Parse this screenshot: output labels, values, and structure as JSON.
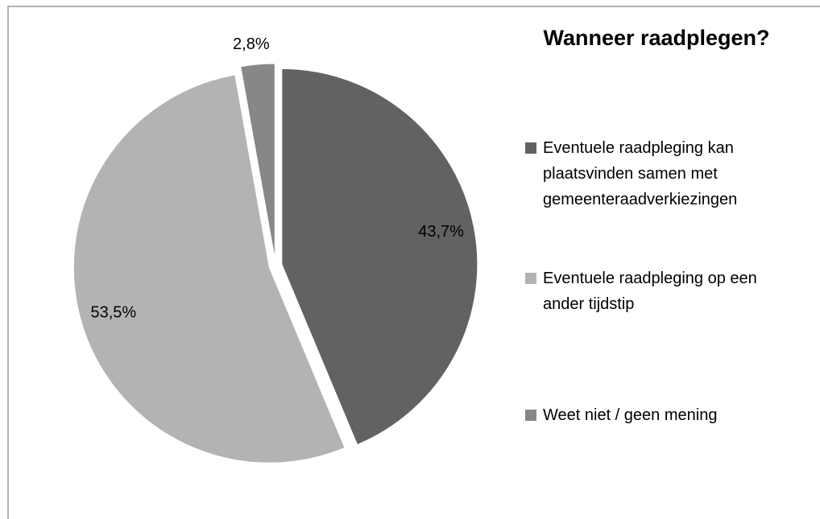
{
  "chart_data": {
    "type": "pie",
    "title": "Wanneer raadplegen?",
    "categories": [
      "Eventuele raadpleging kan plaatsvinden samen met gemeenteraadverkiezingen",
      "Eventuele raadpleging op een ander tijdstip",
      "Weet niet / geen mening"
    ],
    "values": [
      43.7,
      53.5,
      2.8
    ],
    "value_labels": [
      "43,7%",
      "53,5%",
      "2,8%"
    ],
    "colors": [
      "#626262",
      "#b3b3b3",
      "#878787"
    ],
    "legend": "right"
  }
}
